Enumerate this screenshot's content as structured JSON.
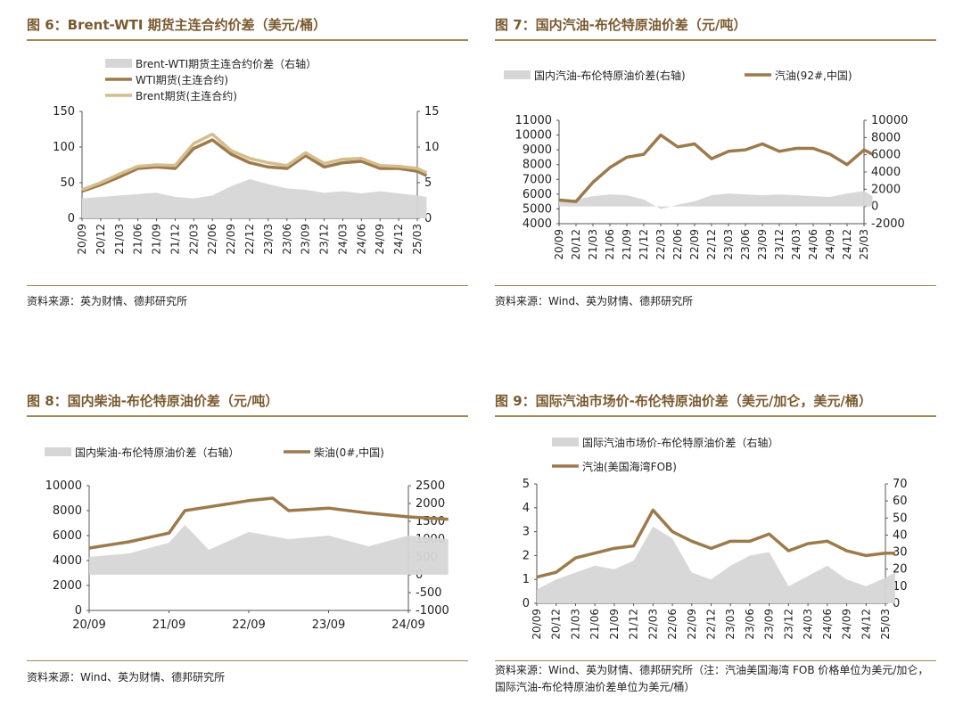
{
  "colors": {
    "title": "#7a5a2f",
    "rule": "#a38454",
    "line_dark": "#9c7a4c",
    "line_light": "#d4bd8e",
    "area": "#d6d6d6"
  },
  "panels": [
    {
      "title": "图 6：Brent-WTI 期货主连合约价差（美元/桶）",
      "source": "资料来源：英为财情、德邦研究所",
      "chart_data": {
        "type": "line",
        "legend_placement": "top",
        "x_tick_labels": [
          "20/09",
          "20/12",
          "21/03",
          "21/06",
          "21/09",
          "21/12",
          "22/03",
          "22/06",
          "22/09",
          "22/12",
          "23/03",
          "23/06",
          "23/09",
          "23/12",
          "24/03",
          "24/06",
          "24/09",
          "24/12",
          "25/03"
        ],
        "left_axis": {
          "range": [
            0,
            150
          ],
          "ticks": [
            "0",
            "50",
            "100",
            "150"
          ]
        },
        "right_axis": {
          "range": [
            0,
            15
          ],
          "ticks": [
            "0",
            "5",
            "10",
            "15"
          ]
        },
        "series": [
          {
            "name": "Brent-WTI期货主连合约价差（右轴）",
            "style": "area",
            "axis": "right",
            "color": "#d6d6d6",
            "x": [
              0,
              2,
              3,
              4,
              5,
              6,
              7,
              8,
              9,
              10,
              11,
              12,
              13,
              14,
              15,
              16,
              17,
              18,
              18.5
            ],
            "values": [
              2.8,
              3.2,
              3.4,
              3.6,
              3.0,
              2.8,
              3.2,
              4.5,
              5.5,
              4.8,
              4.2,
              4.0,
              3.6,
              3.8,
              3.5,
              3.8,
              3.5,
              3.2,
              3.0
            ]
          },
          {
            "name": "WTI期货(主连合约)",
            "style": "line",
            "axis": "left",
            "color": "#9c7a4c",
            "x": [
              0,
              1,
              2,
              3,
              4,
              5,
              6,
              7,
              8,
              9,
              10,
              11,
              12,
              13,
              14,
              15,
              16,
              17,
              18,
              18.5
            ],
            "values": [
              38,
              47,
              58,
              70,
              72,
              70,
              98,
              110,
              90,
              78,
              72,
              70,
              88,
              72,
              78,
              80,
              70,
              70,
              66,
              60
            ]
          },
          {
            "name": "Brent期货(主连合约)",
            "style": "line",
            "axis": "left",
            "color": "#d4bd8e",
            "x": [
              0,
              1,
              2,
              3,
              4,
              5,
              6,
              7,
              8,
              9,
              10,
              11,
              12,
              13,
              14,
              15,
              16,
              17,
              18,
              18.5
            ],
            "values": [
              40,
              50,
              62,
              73,
              75,
              74,
              105,
              118,
              95,
              84,
              78,
              74,
              92,
              77,
              83,
              84,
              74,
              73,
              70,
              64
            ]
          }
        ]
      }
    },
    {
      "title": "图 7：国内汽油-布伦特原油价差（元/吨）",
      "source": "资料来源：Wind、英为财情、德邦研究所",
      "chart_data": {
        "type": "line",
        "legend_placement": "top",
        "x_tick_labels": [
          "20/09",
          "20/12",
          "21/03",
          "21/06",
          "21/09",
          "21/12",
          "22/03",
          "22/06",
          "22/09",
          "22/12",
          "23/03",
          "23/06",
          "23/09",
          "23/12",
          "24/03",
          "24/06",
          "24/09",
          "24/12",
          "25/03"
        ],
        "left_axis": {
          "range": [
            4000,
            11000
          ],
          "ticks": [
            "4000",
            "5000",
            "6000",
            "7000",
            "8000",
            "9000",
            "10000",
            "11000"
          ]
        },
        "right_axis": {
          "range": [
            -2000,
            10000
          ],
          "ticks": [
            "-2000",
            "0",
            "2000",
            "4000",
            "6000",
            "8000",
            "10000"
          ]
        },
        "series": [
          {
            "name": "国内汽油-布伦特原油价差(右轴)",
            "style": "area",
            "axis": "right",
            "color": "#d6d6d6",
            "x": [
              0,
              1,
              2,
              3,
              4,
              5,
              6,
              7,
              8,
              9,
              10,
              11,
              12,
              13,
              14,
              15,
              16,
              17,
              18,
              18.5
            ],
            "values": [
              600,
              800,
              1200,
              1400,
              1300,
              800,
              -300,
              200,
              600,
              1300,
              1500,
              1400,
              1300,
              1400,
              1300,
              1200,
              1100,
              1500,
              1800,
              1200
            ]
          },
          {
            "name": "汽油(92#,中国)",
            "style": "line",
            "axis": "left",
            "color": "#9c7a4c",
            "x": [
              0,
              1,
              2,
              3,
              4,
              5,
              6,
              7,
              8,
              9,
              10,
              11,
              12,
              13,
              14,
              15,
              16,
              17,
              18,
              18.5
            ],
            "values": [
              5600,
              5500,
              6800,
              7800,
              8500,
              8700,
              10000,
              9200,
              9400,
              8400,
              8900,
              9000,
              9400,
              8900,
              9100,
              9100,
              8700,
              8000,
              9000,
              8700
            ]
          }
        ]
      }
    },
    {
      "title": "图 8：国内柴油-布伦特原油价差（元/吨）",
      "source": "资料来源：Wind、英为财情、德邦研究所",
      "chart_data": {
        "type": "line",
        "legend_placement": "top",
        "x_tick_labels": [
          "20/09",
          "21/09",
          "22/09",
          "23/09",
          "24/09"
        ],
        "left_axis": {
          "range": [
            0,
            10000
          ],
          "ticks": [
            "0",
            "2000",
            "4000",
            "6000",
            "8000",
            "10000"
          ]
        },
        "right_axis": {
          "range": [
            -1000,
            2500
          ],
          "ticks": [
            "-1000",
            "-500",
            "0",
            "500",
            "1000",
            "1500",
            "2000",
            "2500"
          ]
        },
        "series": [
          {
            "name": "国内柴油-布伦特原油价差（右轴）",
            "style": "area",
            "axis": "right",
            "color": "#d6d6d6",
            "x": [
              0,
              0.5,
              1,
              1.2,
              1.5,
              2,
              2.5,
              3,
              3.5,
              4,
              4.5
            ],
            "values": [
              500,
              600,
              900,
              1400,
              700,
              1200,
              1000,
              1100,
              800,
              1100,
              1000
            ]
          },
          {
            "name": "柴油(0#,中国)",
            "style": "line",
            "axis": "left",
            "color": "#9c7a4c",
            "x": [
              0,
              0.5,
              1,
              1.2,
              1.5,
              2,
              2.3,
              2.5,
              3,
              3.5,
              4,
              4.5
            ],
            "values": [
              5000,
              5500,
              6200,
              8000,
              8300,
              8800,
              9000,
              8000,
              8200,
              7800,
              7500,
              7300
            ]
          }
        ]
      }
    },
    {
      "title": "图 9：国际汽油市场价-布伦特原油价差（美元/加仑，美元/桶）",
      "source": "资料来源：Wind、英为财情、德邦研究所（注：汽油美国海湾 FOB 价格单位为美元/加仑，国际汽油-布伦特原油价差单位为美元/桶）",
      "chart_data": {
        "type": "line",
        "legend_placement": "top",
        "x_tick_labels": [
          "20/09",
          "20/12",
          "21/03",
          "21/06",
          "21/09",
          "21/12",
          "22/03",
          "22/06",
          "22/09",
          "22/12",
          "23/03",
          "23/06",
          "23/09",
          "23/12",
          "24/03",
          "24/06",
          "24/09",
          "24/12",
          "25/03"
        ],
        "left_axis": {
          "range": [
            0,
            5
          ],
          "ticks": [
            "0",
            "1",
            "2",
            "3",
            "4",
            "5"
          ]
        },
        "right_axis": {
          "range": [
            0,
            70
          ],
          "ticks": [
            "0",
            "10",
            "20",
            "30",
            "40",
            "50",
            "60",
            "70"
          ]
        },
        "series": [
          {
            "name": "国际汽油市场价-布伦特原油价差（右轴）",
            "style": "area",
            "axis": "right",
            "color": "#d6d6d6",
            "x": [
              0,
              1,
              2,
              3,
              4,
              5,
              6,
              7,
              8,
              9,
              10,
              11,
              12,
              13,
              14,
              15,
              16,
              17,
              18,
              18.5
            ],
            "values": [
              8,
              14,
              18,
              22,
              20,
              25,
              45,
              38,
              18,
              14,
              22,
              28,
              30,
              10,
              16,
              22,
              14,
              10,
              15,
              18
            ]
          },
          {
            "name": "汽油(美国海湾FOB)",
            "style": "line",
            "axis": "left",
            "color": "#9c7a4c",
            "x": [
              0,
              1,
              2,
              3,
              4,
              5,
              6,
              7,
              8,
              9,
              10,
              11,
              12,
              13,
              14,
              15,
              16,
              17,
              18,
              18.5
            ],
            "values": [
              1.1,
              1.3,
              1.9,
              2.1,
              2.3,
              2.4,
              3.9,
              3.0,
              2.6,
              2.3,
              2.6,
              2.6,
              2.9,
              2.2,
              2.5,
              2.6,
              2.2,
              2.0,
              2.1,
              2.1
            ]
          }
        ]
      }
    }
  ]
}
